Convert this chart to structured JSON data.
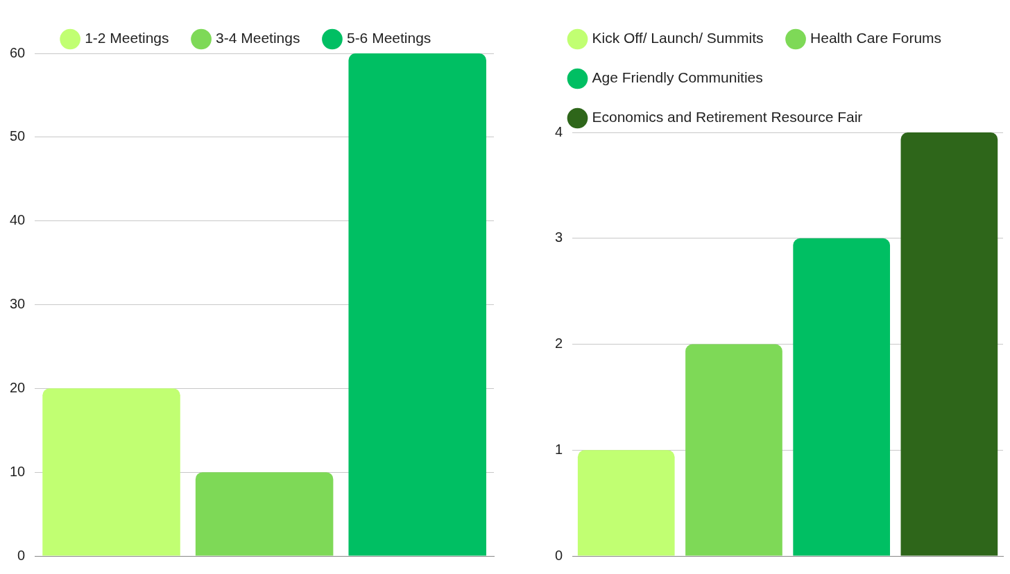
{
  "chart_data": [
    {
      "type": "bar",
      "categories": [
        null,
        null,
        null
      ],
      "series": [
        {
          "name": "1-2 Meetings",
          "color": "#c1ff72",
          "values": [
            20,
            null,
            null
          ]
        },
        {
          "name": "3-4 Meetings",
          "color": "#7ed957",
          "values": [
            null,
            10,
            null
          ]
        },
        {
          "name": "5-6 Meetings",
          "color": "#00bf63",
          "values": [
            null,
            null,
            60
          ]
        }
      ],
      "ylim": [
        0,
        60
      ],
      "yticks": [
        0,
        10,
        20,
        30,
        40,
        50,
        60
      ],
      "grid": "y",
      "legend": "top"
    },
    {
      "type": "bar",
      "categories": [
        null,
        null,
        null,
        null
      ],
      "series": [
        {
          "name": "Kick Off/ Launch/ Summits",
          "color": "#c1ff72",
          "values": [
            1,
            null,
            null,
            null
          ]
        },
        {
          "name": "Health Care Forums",
          "color": "#7ed957",
          "values": [
            null,
            2,
            null,
            null
          ]
        },
        {
          "name": "Age Friendly Communities",
          "color": "#00bf63",
          "values": [
            null,
            null,
            3,
            null
          ]
        },
        {
          "name": "Economics and Retirement Resource Fair",
          "color": "#2e661a",
          "values": [
            null,
            null,
            null,
            4
          ]
        }
      ],
      "ylim": [
        0,
        4
      ],
      "yticks": [
        0,
        1,
        2,
        3,
        4
      ],
      "grid": "y",
      "legend": "top left"
    }
  ]
}
